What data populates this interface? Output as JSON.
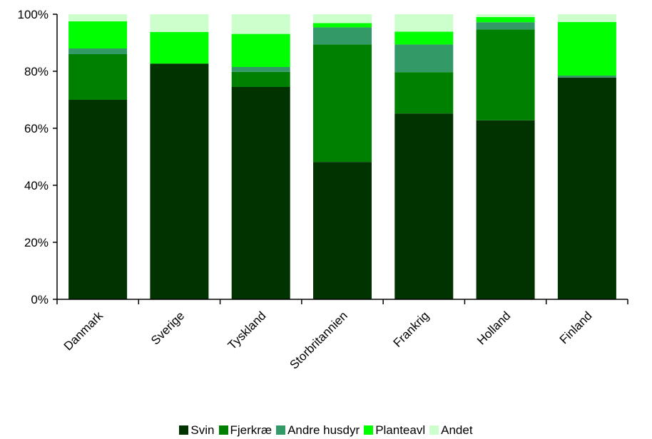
{
  "chart_data": {
    "type": "bar",
    "stacked": true,
    "title": "",
    "xlabel": "",
    "ylabel": "",
    "ylim": [
      0,
      100
    ],
    "yticks": [
      0,
      20,
      40,
      60,
      80,
      100
    ],
    "ytick_suffix": "%",
    "grid": false,
    "legend_position": "bottom",
    "categories": [
      "Danmark",
      "Sverige",
      "Tyskland",
      "Storbritannien",
      "Frankrig",
      "Holland",
      "Finland"
    ],
    "series": [
      {
        "name": "Svin",
        "color": "#003300",
        "values": [
          70,
          82.7,
          74.5,
          48.2,
          65.2,
          62.8,
          77.8
        ]
      },
      {
        "name": "Fjerkræ",
        "color": "#008000",
        "values": [
          16,
          0,
          5.3,
          41.2,
          14.5,
          31.9,
          0
        ]
      },
      {
        "name": "Andre husdyr",
        "color": "#339966",
        "values": [
          2,
          0,
          1.7,
          6,
          9.7,
          2.5,
          0.7
        ]
      },
      {
        "name": "Planteavl",
        "color": "#00ff00",
        "values": [
          9.5,
          11.1,
          11.6,
          1.5,
          4.5,
          1.8,
          18.8
        ]
      },
      {
        "name": "Andet",
        "color": "#ccffcc",
        "values": [
          2.5,
          6.2,
          6.9,
          3.1,
          6.1,
          1,
          2.7
        ]
      }
    ]
  }
}
